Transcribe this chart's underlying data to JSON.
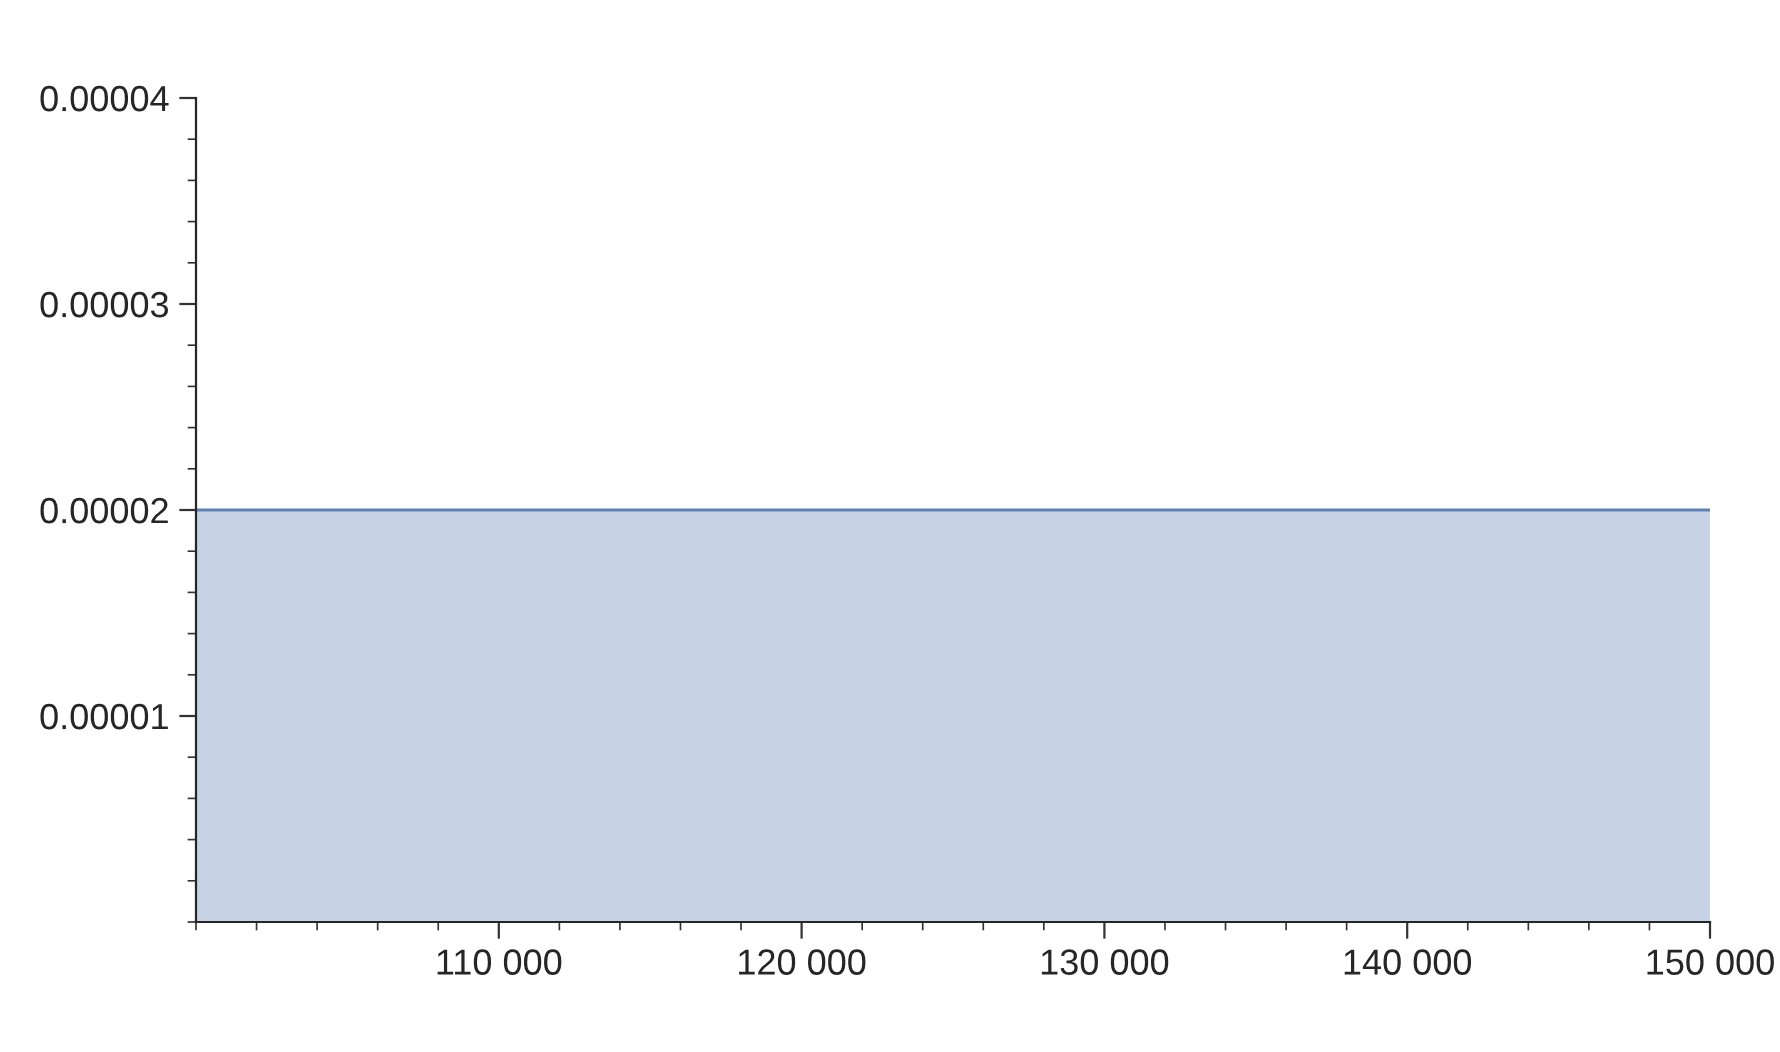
{
  "chart_data": {
    "type": "area",
    "xlim": [
      100000,
      150000
    ],
    "ylim": [
      0,
      4e-05
    ],
    "xticks": [
      {
        "value": 110000,
        "label": "110 000"
      },
      {
        "value": 120000,
        "label": "120 000"
      },
      {
        "value": 130000,
        "label": "130 000"
      },
      {
        "value": 140000,
        "label": "140 000"
      },
      {
        "value": 150000,
        "label": "150 000"
      }
    ],
    "yticks": [
      {
        "value": 1e-05,
        "label": "0.00001"
      },
      {
        "value": 2e-05,
        "label": "0.00002"
      },
      {
        "value": 3e-05,
        "label": "0.00003"
      },
      {
        "value": 4e-05,
        "label": "0.00004"
      }
    ],
    "series": [
      {
        "color": "#5e81b5",
        "x": [
          100000,
          150000
        ],
        "values": [
          2e-05,
          2e-05
        ]
      }
    ]
  }
}
